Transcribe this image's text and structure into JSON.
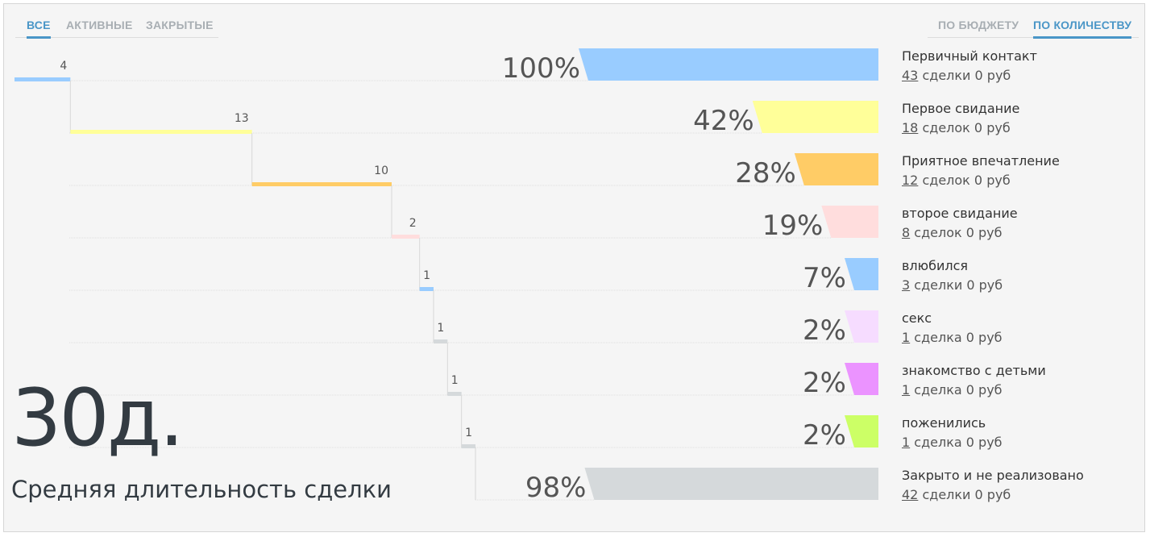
{
  "tabs_left": [
    {
      "label": "ВСЕ",
      "active": true
    },
    {
      "label": "АКТИВНЫЕ",
      "active": false
    },
    {
      "label": "ЗАКРЫТЫЕ",
      "active": false
    }
  ],
  "tabs_right": [
    {
      "label": "ПО БЮДЖЕТУ",
      "active": false
    },
    {
      "label": "ПО КОЛИЧЕСТВУ",
      "active": true
    }
  ],
  "summary": {
    "days_value": "30д.",
    "days_label": "Средняя длительность сделки"
  },
  "stages": [
    {
      "name": "Первичный контакт",
      "count": "43",
      "suffix": "сделки 0 руб",
      "percent_label": "100%"
    },
    {
      "name": "Первое свидание",
      "count": "18",
      "suffix": "сделок 0 руб",
      "percent_label": "42%"
    },
    {
      "name": "Приятное впечатление",
      "count": "12",
      "suffix": "сделок 0 руб",
      "percent_label": "28%"
    },
    {
      "name": "второе свидание",
      "count": "8",
      "suffix": "сделок 0 руб",
      "percent_label": "19%"
    },
    {
      "name": "влюбился",
      "count": "3",
      "suffix": "сделки 0 руб",
      "percent_label": "7%"
    },
    {
      "name": "секс",
      "count": "1",
      "suffix": "сделка 0 руб",
      "percent_label": "2%"
    },
    {
      "name": "знакомство с детьми",
      "count": "1",
      "suffix": "сделка 0 руб",
      "percent_label": "2%"
    },
    {
      "name": "поженились",
      "count": "1",
      "suffix": "сделка 0 руб",
      "percent_label": "2%"
    },
    {
      "name": "Закрыто и не реализовано",
      "count": "42",
      "suffix": "сделки 0 руб",
      "percent_label": "98%"
    }
  ],
  "chart_data": {
    "type": "bar",
    "categories": [
      "Первичный контакт",
      "Первое свидание",
      "Приятное впечатление",
      "второе свидание",
      "влюбился",
      "секс",
      "знакомство с детьми",
      "поженились",
      "Закрыто и не реализовано"
    ],
    "series": [
      {
        "values": [
          100,
          42,
          28,
          19,
          7,
          2,
          2,
          2,
          98
        ]
      }
    ],
    "duration_days": [
      4,
      13,
      10,
      2,
      1,
      1,
      1,
      1
    ],
    "colors": [
      "#99ccff",
      "#ffff99",
      "#ffcc66",
      "#ffdddd",
      "#99ccff",
      "#f6dcff",
      "#eb93ff",
      "#ccff66",
      "#d5d9db"
    ],
    "step_colors": [
      "#99ccff",
      "#ffff99",
      "#ffcc66",
      "#ffdddd",
      "#99ccff",
      "#d5d9db",
      "#d5d9db",
      "#d5d9db"
    ],
    "xlim": [
      0,
      100
    ]
  }
}
